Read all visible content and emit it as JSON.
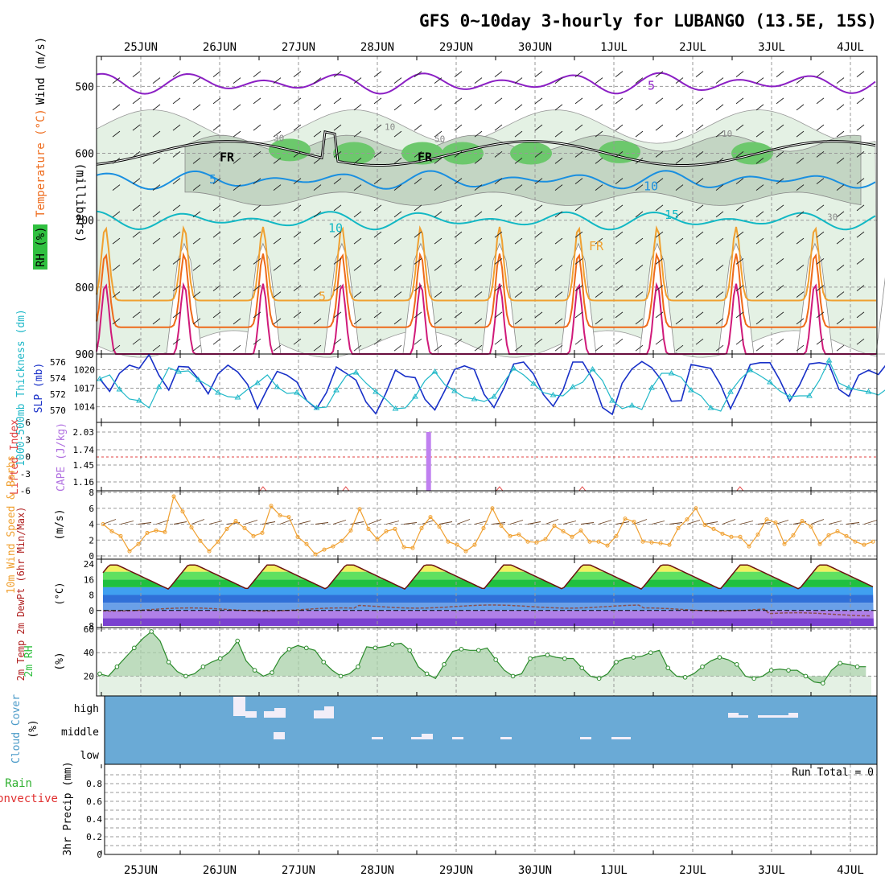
{
  "title": "GFS 0~10day 3-hourly for LUBANGO (13.5E, 15S)",
  "dates": [
    "25JUN",
    "26JUN",
    "27JUN",
    "28JUN",
    "29JUN",
    "30JUN",
    "1JUL",
    "2JUL",
    "3JUL",
    "4JUL"
  ],
  "colors": {
    "purple": "#8b1fc4",
    "blue": "#1a8fe0",
    "cyan": "#12b8c4",
    "orange": "#f0a030",
    "darkorange": "#ee6a1a",
    "magenta": "#d01a7a",
    "green": "#30c040",
    "slp": "#1830c8",
    "thick": "#20b8c8",
    "wind": "#f0a030",
    "cloud": "#6aaad6",
    "grid": "#999999"
  },
  "chart_data": [
    {
      "type": "contour",
      "name": "upper-air",
      "ylabel_parts": [
        "Wind (m/s)",
        "Temperature (°C)",
        "RH (%)"
      ],
      "yunit": "(millibars)",
      "yticks": [
        "500",
        "600",
        "700",
        "800",
        "900"
      ],
      "ylim": [
        455,
        900
      ],
      "isotherm_labels": [
        "5",
        "5",
        "10",
        "10",
        "15",
        "5",
        "FR",
        "FR",
        "FR"
      ],
      "rh_labels": [
        "30",
        "10",
        "10",
        "30",
        "50"
      ]
    },
    {
      "type": "line",
      "name": "slp-thickness",
      "ylabel_left": "1000-500mb Thickness (dm)",
      "ylabel_right": "SLP (mb)",
      "left_ticks": [
        "576",
        "574",
        "572",
        "570"
      ],
      "right_ticks": [
        "1020",
        "1017",
        "1014"
      ],
      "series": [
        {
          "name": "SLP",
          "values": [
            1018.5,
            1016.5,
            1019.4,
            1020.7,
            1020.2,
            1022.4,
            1019.1,
            1016.7,
            1020.5,
            1020.4,
            1018.5,
            1016.1,
            1019.3,
            1020.7,
            1019.6,
            1017.6,
            1013.7,
            1016.9,
            1019.7,
            1019.1,
            1018,
            1015,
            1013.7,
            1016.3,
            1020.4,
            1019.4,
            1018.3,
            1014.8,
            1012.9,
            1016.1,
            1019.9,
            1018.9,
            1018.7,
            1015.2,
            1013.5,
            1016.6,
            1020,
            1020.6,
            1020,
            1016,
            1013.9,
            1017,
            1020.9,
            1021.2,
            1019.3,
            1016,
            1014.1,
            1016.7,
            1021.2,
            1021.2,
            1018.5,
            1013.9,
            1012.8,
            1017.8,
            1020.1,
            1021.3,
            1020.3,
            1018.3,
            1014.9,
            1015,
            1020.8,
            1020.5,
            1020.2,
            1017.5,
            1013.7,
            1017,
            1020.8,
            1021.1,
            1021.1,
            1018.3,
            1014.9,
            1017.5,
            1020.9,
            1021.1,
            1020.8,
            1016.8,
            1015.7,
            1019.1,
            1019.9,
            1019.2,
            1021.2
          ]
        },
        {
          "name": "Thickness",
          "values": [
            573.9,
            574.4,
            572.6,
            571.4,
            571.2,
            570.3,
            572.9,
            575.3,
            574.8,
            574.9,
            573.8,
            573.1,
            572.2,
            571.7,
            571.6,
            572.6,
            573.4,
            574.4,
            572.9,
            572.1,
            572.2,
            571.2,
            570.3,
            570.4,
            572.5,
            574.3,
            574.7,
            573.4,
            572.3,
            571.4,
            570.2,
            570.3,
            571.7,
            573.7,
            574.8,
            573.2,
            572.4,
            571.6,
            571.4,
            571.1,
            571.7,
            573.5,
            575.2,
            574.4,
            573.3,
            572.2,
            571.9,
            571.8,
            572.9,
            573.5,
            575.1,
            573.7,
            571.2,
            570.2,
            570.6,
            570.1,
            572.8,
            574.6,
            574.6,
            574.1,
            572.5,
            571.8,
            570.3,
            569.9,
            572.3,
            573.9,
            575,
            574.3,
            573.5,
            572.4,
            571.7,
            571.8,
            571.8,
            573.7,
            576.2,
            573.4,
            572.8,
            572.5,
            572.3,
            571.9,
            572.8
          ]
        }
      ]
    },
    {
      "type": "bar",
      "name": "cape-li",
      "ylabel_left": "Lifted Index",
      "ylabel_right": "CAPE (J/kg)",
      "left_ticks": [
        "6",
        "3",
        "0",
        "-3",
        "-6"
      ],
      "right_ticks": [
        "2.03",
        "1.74",
        "1.45",
        "1.16"
      ],
      "cape_bar": {
        "date_index": 3.65,
        "value": 2.03
      },
      "li_spikes": [
        1.55,
        2.6,
        4.55,
        5.6,
        7.6
      ]
    },
    {
      "type": "line",
      "name": "wind10m",
      "ylabel": "10m Wind Speed & Barbs",
      "yunit": "(m/s)",
      "yticks": [
        "8",
        "6",
        "4",
        "2",
        "0"
      ],
      "ylim": [
        0,
        8
      ],
      "values": [
        4,
        3.1,
        2.5,
        0.6,
        1.5,
        2.9,
        3.2,
        3,
        7.5,
        5.6,
        3.6,
        1.9,
        0.6,
        1.8,
        3.4,
        4.4,
        3.5,
        2.5,
        2.9,
        6.3,
        5.1,
        4.9,
        2.4,
        1.5,
        0.2,
        0.8,
        1.2,
        1.9,
        3.2,
        5.9,
        3.4,
        2.1,
        3.1,
        3.4,
        1.1,
        1,
        3.5,
        4.9,
        3.7,
        1.8,
        1.4,
        0.6,
        1.4,
        3.5,
        6,
        3.8,
        2.5,
        2.7,
        1.8,
        1.7,
        2.1,
        3.8,
        3.1,
        2.4,
        3.2,
        1.8,
        1.8,
        1.3,
        2.5,
        4.7,
        4.3,
        1.8,
        1.7,
        1.6,
        1.4,
        3.5,
        4.6,
        6,
        3.9,
        3.4,
        2.8,
        2.4,
        2.4,
        1.2,
        2.7,
        4.6,
        4.2,
        1.5,
        2.6,
        4.4,
        3.7,
        1.5,
        2.6,
        3.1,
        2.5,
        1.8,
        1.4,
        1.8
      ]
    },
    {
      "type": "area",
      "name": "temp-dewpt",
      "ylabel": "2m Temp 2m DewPt (6hr Min/Max)",
      "yunit": "(°C)",
      "yticks": [
        "24",
        "16",
        "8",
        "0",
        "-8"
      ],
      "ylim": [
        -8,
        24
      ]
    },
    {
      "type": "area",
      "name": "rh2m",
      "ylabel": "2m RH",
      "yunit": "(%)",
      "yticks": [
        "60",
        "40",
        "20"
      ],
      "ylim": [
        10,
        60
      ],
      "values": [
        22,
        20,
        28,
        36,
        44,
        52,
        58,
        50,
        32,
        24,
        20,
        22,
        28,
        32,
        35,
        40,
        50,
        33,
        25,
        20,
        23,
        36,
        43,
        46,
        44,
        42,
        32,
        25,
        20,
        22,
        28,
        45,
        44,
        45,
        47,
        48,
        42,
        28,
        22,
        18,
        30,
        41,
        43,
        42,
        42,
        44,
        34,
        25,
        20,
        22,
        35,
        37,
        38,
        36,
        35,
        35,
        27,
        20,
        18,
        22,
        32,
        35,
        36,
        37,
        40,
        42,
        27,
        20,
        19,
        22,
        28,
        33,
        36,
        34,
        30,
        20,
        18,
        20,
        25,
        26,
        25,
        25,
        20,
        15,
        14,
        25,
        31,
        30,
        28,
        28
      ]
    },
    {
      "type": "heatmap",
      "name": "cloud-cover",
      "ylabel": "Cloud Cover",
      "yunit": "(%)",
      "levels": [
        "high",
        "middle",
        "low"
      ]
    },
    {
      "type": "bar",
      "name": "precip",
      "ylabel": "3hr Precip (mm)",
      "ylabel_left": "Total / Rain",
      "ylabel_left2": "Convective",
      "yticks": [
        "0.8",
        "0.6",
        "0.4",
        "0.2",
        "0"
      ],
      "ylim": [
        0,
        1
      ],
      "run_total": "Run Total = 0"
    }
  ]
}
